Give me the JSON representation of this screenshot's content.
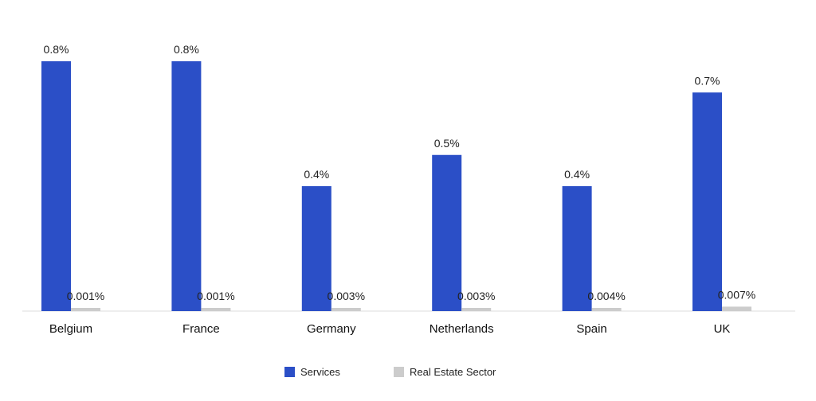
{
  "chart_data": {
    "type": "bar",
    "title": "",
    "xlabel": "",
    "ylabel": "",
    "categories": [
      "Belgium",
      "France",
      "Germany",
      "Netherlands",
      "Spain",
      "UK"
    ],
    "series": [
      {
        "name": "Services",
        "color": "#2b4fc7",
        "values": [
          0.8,
          0.8,
          0.4,
          0.5,
          0.4,
          0.7
        ],
        "labels": [
          "0.8%",
          "0.8%",
          "0.4%",
          "0.5%",
          "0.4%",
          "0.7%"
        ]
      },
      {
        "name": "Real Estate Sector",
        "color": "#cccccc",
        "values": [
          0.001,
          0.001,
          0.003,
          0.003,
          0.004,
          0.007
        ],
        "labels": [
          "0.001%",
          "0.001%",
          "0.003%",
          "0.003%",
          "0.004%",
          "0.007%"
        ]
      }
    ],
    "ylim": [
      0,
      0.8
    ],
    "grid": false,
    "legend_position": "bottom-center"
  }
}
